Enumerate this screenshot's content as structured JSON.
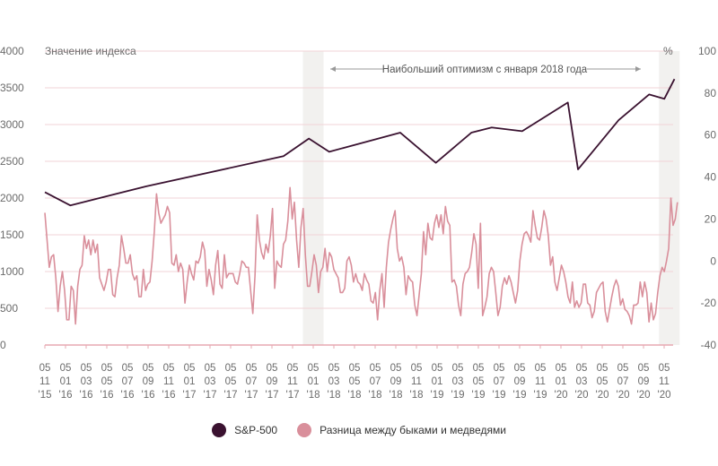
{
  "chart_data": {
    "type": "line",
    "left_axis_title": "Значение индекса",
    "right_axis_title": "%",
    "annotation": "Наибольший оптимизм с января 2018 года",
    "left_ylim": [
      0,
      4000
    ],
    "left_ticks": [
      "0",
      "500",
      "1000",
      "1500",
      "2000",
      "2500",
      "3000",
      "3500",
      "4000"
    ],
    "right_ylim": [
      -40,
      100
    ],
    "right_ticks": [
      "-40",
      "-20",
      "0",
      "20",
      "40",
      "60",
      "80",
      "100"
    ],
    "x_ticks": [
      [
        "05",
        "11",
        "'15"
      ],
      [
        "05",
        "01",
        "'16"
      ],
      [
        "05",
        "03",
        "'16"
      ],
      [
        "05",
        "05",
        "'16"
      ],
      [
        "05",
        "07",
        "'16"
      ],
      [
        "05",
        "09",
        "'16"
      ],
      [
        "05",
        "11",
        "'16"
      ],
      [
        "05",
        "01",
        "'17"
      ],
      [
        "05",
        "03",
        "'17"
      ],
      [
        "05",
        "05",
        "'17"
      ],
      [
        "05",
        "07",
        "'17"
      ],
      [
        "05",
        "09",
        "'17"
      ],
      [
        "05",
        "11",
        "'17"
      ],
      [
        "05",
        "01",
        "'18"
      ],
      [
        "05",
        "03",
        "'18"
      ],
      [
        "05",
        "05",
        "'18"
      ],
      [
        "05",
        "07",
        "'18"
      ],
      [
        "05",
        "09",
        "'18"
      ],
      [
        "05",
        "11",
        "'18"
      ],
      [
        "05",
        "01",
        "'19"
      ],
      [
        "05",
        "03",
        "'19"
      ],
      [
        "05",
        "05",
        "'19"
      ],
      [
        "05",
        "07",
        "'19"
      ],
      [
        "05",
        "09",
        "'19"
      ],
      [
        "05",
        "11",
        "'19"
      ],
      [
        "05",
        "01",
        "'20"
      ],
      [
        "05",
        "03",
        "'20"
      ],
      [
        "05",
        "05",
        "'20"
      ],
      [
        "05",
        "07",
        "'20"
      ],
      [
        "05",
        "09",
        "'20"
      ],
      [
        "05",
        "11",
        "'20"
      ]
    ],
    "shaded_ranges_months": [
      [
        25,
        27
      ],
      [
        59.5,
        61.5
      ]
    ],
    "series": [
      {
        "name": "S&P-500",
        "axis": "left",
        "color": "#3a1230",
        "x_months": [
          0,
          2.5,
          10,
          23.5,
          26,
          28,
          35,
          38.5,
          42,
          44,
          47,
          51.5,
          52.5,
          56.5,
          59.5,
          61,
          62
        ],
        "values": [
          2080,
          1900,
          2160,
          2570,
          2810,
          2630,
          2890,
          2480,
          2890,
          2960,
          2910,
          3300,
          2390,
          3060,
          3410,
          3350,
          3620
        ]
      },
      {
        "name": "Разница между быками и медведями",
        "axis": "right",
        "color": "#d98f9b",
        "step_months": 0.25,
        "values": [
          23,
          10,
          -3,
          2,
          3,
          -8,
          -24,
          -12,
          -5,
          -14,
          -28,
          -28,
          -12,
          -14,
          -30,
          -12,
          -4,
          -2,
          12,
          6,
          10,
          3,
          10,
          4,
          8,
          -8,
          -11,
          -14,
          -10,
          -4,
          -4,
          -16,
          -17,
          -8,
          -2,
          12,
          6,
          -1,
          -1,
          3,
          -6,
          -9,
          -7,
          -17,
          -17,
          -4,
          -14,
          -11,
          -10,
          0,
          14,
          32,
          23,
          18,
          20,
          22,
          26,
          23,
          -1,
          -2,
          3,
          -5,
          -1,
          -4,
          -20,
          -10,
          -2,
          -6,
          -9,
          0,
          -1,
          2,
          9,
          5,
          -12,
          -4,
          -9,
          -16,
          -2,
          5,
          -11,
          -13,
          3,
          -8,
          -6,
          -6,
          -6,
          -10,
          -11,
          -6,
          0,
          -1,
          -3,
          -3,
          -14,
          -25,
          -7,
          22,
          10,
          4,
          1,
          8,
          4,
          12,
          25,
          -13,
          0,
          -2,
          -3,
          8,
          10,
          19,
          35,
          20,
          28,
          10,
          -3,
          16,
          25,
          3,
          -12,
          -12,
          -5,
          3,
          -2,
          -15,
          -5,
          -3,
          6,
          -5,
          4,
          2,
          -4,
          -6,
          -8,
          -15,
          -15,
          -13,
          0,
          2,
          -2,
          -10,
          -6,
          -10,
          -11,
          -14,
          -6,
          -9,
          -11,
          -19,
          -20,
          -15,
          -28,
          -14,
          -6,
          -22,
          -3,
          9,
          15,
          20,
          24,
          6,
          0,
          2,
          -3,
          -16,
          -7,
          -9,
          -10,
          -21,
          -26,
          -16,
          -6,
          14,
          3,
          18,
          11,
          10,
          18,
          22,
          16,
          22,
          13,
          26,
          19,
          17,
          -10,
          -9,
          -12,
          -21,
          -26,
          -11,
          -6,
          -5,
          -3,
          4,
          13,
          8,
          -13,
          18,
          -26,
          -22,
          -17,
          -6,
          -3,
          -5,
          -15,
          -26,
          -22,
          -12,
          -8,
          -11,
          -7,
          -10,
          -15,
          -20,
          -14,
          0,
          8,
          13,
          14,
          12,
          9,
          24,
          17,
          11,
          10,
          16,
          24,
          20,
          12,
          -2,
          2,
          -10,
          -14,
          -8,
          -2,
          -5,
          -10,
          -17,
          -20,
          -10,
          -22,
          -19,
          -22,
          -20,
          -11,
          -11,
          -20,
          -21,
          -27,
          -24,
          -15,
          -13,
          -11,
          -10,
          -24,
          -29,
          -23,
          -17,
          -12,
          -9,
          -12,
          -21,
          -18,
          -23,
          -24,
          -26,
          -30,
          -21,
          -21,
          -20,
          -10,
          -17,
          -10,
          -15,
          -29,
          -20,
          -28,
          -25,
          -15,
          -7,
          -3,
          -5,
          0,
          6,
          30,
          17,
          20,
          28
        ]
      }
    ]
  },
  "legend": {
    "items": [
      {
        "label": "S&P-500",
        "color": "#3a1230"
      },
      {
        "label": "Разница между быками и медведями",
        "color": "#d98f9b"
      }
    ]
  }
}
